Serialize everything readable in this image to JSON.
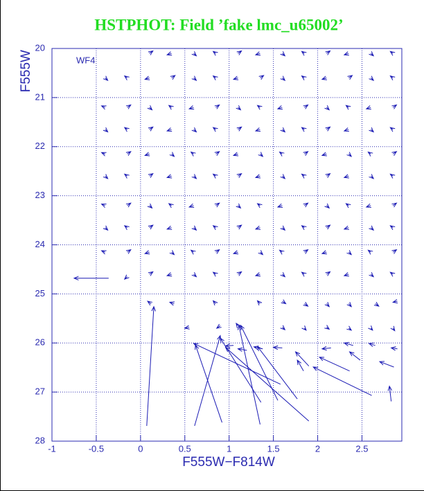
{
  "chart_data": {
    "type": "quiver",
    "title": "HSTPHOT: Field ’fake lmc_u65002’",
    "xlabel": "F555W−F814W",
    "ylabel": "F555W",
    "annotation": "WF4",
    "color": "#1a1ab4",
    "grid": true,
    "y_inverted": true,
    "xlim": [
      -1,
      2.95
    ],
    "ylim": [
      20,
      28
    ],
    "xticks": [
      -1,
      -0.5,
      0,
      0.5,
      1,
      1.5,
      2,
      2.5
    ],
    "yticks": [
      20,
      21,
      22,
      23,
      24,
      25,
      26,
      27,
      28
    ],
    "arrows": [
      [
        0.1,
        20.1,
        0.14,
        20.05
      ],
      [
        0.35,
        20.1,
        0.3,
        20.13
      ],
      [
        0.6,
        20.1,
        0.63,
        20.15
      ],
      [
        0.85,
        20.1,
        0.82,
        20.06
      ],
      [
        1.1,
        20.1,
        1.14,
        20.05
      ],
      [
        1.35,
        20.1,
        1.3,
        20.13
      ],
      [
        1.6,
        20.1,
        1.63,
        20.15
      ],
      [
        1.85,
        20.1,
        1.82,
        20.06
      ],
      [
        2.1,
        20.1,
        2.14,
        20.05
      ],
      [
        2.35,
        20.1,
        2.3,
        20.13
      ],
      [
        2.6,
        20.1,
        2.63,
        20.15
      ],
      [
        2.85,
        20.1,
        2.82,
        20.06
      ],
      [
        -0.4,
        20.6,
        -0.37,
        20.65
      ],
      [
        -0.15,
        20.6,
        -0.18,
        20.56
      ],
      [
        0.1,
        20.6,
        0.05,
        20.63
      ],
      [
        0.35,
        20.6,
        0.39,
        20.55
      ],
      [
        0.6,
        20.6,
        0.63,
        20.65
      ],
      [
        0.85,
        20.6,
        0.82,
        20.56
      ],
      [
        1.1,
        20.6,
        1.05,
        20.63
      ],
      [
        1.35,
        20.6,
        1.39,
        20.55
      ],
      [
        1.6,
        20.6,
        1.63,
        20.65
      ],
      [
        1.85,
        20.6,
        1.82,
        20.56
      ],
      [
        2.1,
        20.6,
        2.05,
        20.63
      ],
      [
        2.35,
        20.6,
        2.39,
        20.55
      ],
      [
        2.6,
        20.6,
        2.63,
        20.65
      ],
      [
        2.85,
        20.6,
        2.82,
        20.56
      ],
      [
        -0.4,
        21.2,
        -0.44,
        21.17
      ],
      [
        -0.15,
        21.2,
        -0.11,
        21.15
      ],
      [
        0.1,
        21.2,
        0.13,
        21.25
      ],
      [
        0.35,
        21.2,
        0.32,
        21.16
      ],
      [
        0.6,
        21.2,
        0.55,
        21.23
      ],
      [
        0.85,
        21.2,
        0.89,
        21.15
      ],
      [
        1.1,
        21.2,
        1.13,
        21.25
      ],
      [
        1.35,
        21.2,
        1.32,
        21.16
      ],
      [
        1.6,
        21.2,
        1.55,
        21.23
      ],
      [
        1.85,
        21.2,
        1.89,
        21.15
      ],
      [
        2.1,
        21.2,
        2.13,
        21.25
      ],
      [
        2.35,
        21.2,
        2.32,
        21.16
      ],
      [
        2.6,
        21.2,
        2.55,
        21.23
      ],
      [
        2.85,
        21.2,
        2.89,
        21.15
      ],
      [
        -0.4,
        21.65,
        -0.37,
        21.7
      ],
      [
        -0.15,
        21.65,
        -0.18,
        21.61
      ],
      [
        0.1,
        21.65,
        0.14,
        21.6
      ],
      [
        0.35,
        21.65,
        0.3,
        21.68
      ],
      [
        0.6,
        21.65,
        0.63,
        21.7
      ],
      [
        0.85,
        21.65,
        0.82,
        21.61
      ],
      [
        1.1,
        21.65,
        1.14,
        21.6
      ],
      [
        1.35,
        21.65,
        1.3,
        21.68
      ],
      [
        1.6,
        21.65,
        1.63,
        21.7
      ],
      [
        1.85,
        21.65,
        1.82,
        21.61
      ],
      [
        2.1,
        21.65,
        2.14,
        21.6
      ],
      [
        2.35,
        21.65,
        2.3,
        21.68
      ],
      [
        2.6,
        21.65,
        2.63,
        21.7
      ],
      [
        2.85,
        21.65,
        2.82,
        21.61
      ],
      [
        -0.4,
        22.15,
        -0.44,
        22.12
      ],
      [
        -0.15,
        22.15,
        -0.11,
        22.1
      ],
      [
        0.1,
        22.15,
        0.05,
        22.18
      ],
      [
        0.35,
        22.15,
        0.38,
        22.2
      ],
      [
        0.6,
        22.15,
        0.57,
        22.11
      ],
      [
        0.85,
        22.15,
        0.89,
        22.1
      ],
      [
        1.1,
        22.15,
        1.05,
        22.18
      ],
      [
        1.35,
        22.15,
        1.38,
        22.2
      ],
      [
        1.6,
        22.15,
        1.57,
        22.11
      ],
      [
        1.85,
        22.15,
        1.89,
        22.1
      ],
      [
        2.1,
        22.15,
        2.05,
        22.18
      ],
      [
        2.35,
        22.15,
        2.38,
        22.2
      ],
      [
        2.6,
        22.15,
        2.57,
        22.11
      ],
      [
        2.85,
        22.15,
        2.89,
        22.1
      ],
      [
        -0.4,
        22.6,
        -0.37,
        22.65
      ],
      [
        -0.15,
        22.6,
        -0.18,
        22.56
      ],
      [
        0.1,
        22.6,
        0.14,
        22.55
      ],
      [
        0.35,
        22.6,
        0.3,
        22.63
      ],
      [
        0.6,
        22.6,
        0.63,
        22.65
      ],
      [
        0.85,
        22.6,
        0.82,
        22.56
      ],
      [
        1.1,
        22.6,
        1.14,
        22.55
      ],
      [
        1.35,
        22.6,
        1.3,
        22.63
      ],
      [
        1.6,
        22.6,
        1.63,
        22.65
      ],
      [
        1.85,
        22.6,
        1.82,
        22.56
      ],
      [
        2.1,
        22.6,
        2.14,
        22.55
      ],
      [
        2.35,
        22.6,
        2.3,
        22.63
      ],
      [
        2.6,
        22.6,
        2.63,
        22.65
      ],
      [
        2.85,
        22.6,
        2.82,
        22.56
      ],
      [
        -0.4,
        23.2,
        -0.44,
        23.17
      ],
      [
        -0.15,
        23.2,
        -0.11,
        23.15
      ],
      [
        0.1,
        23.2,
        0.13,
        23.25
      ],
      [
        0.35,
        23.2,
        0.32,
        23.16
      ],
      [
        0.6,
        23.2,
        0.55,
        23.23
      ],
      [
        0.85,
        23.2,
        0.89,
        23.15
      ],
      [
        1.1,
        23.2,
        1.13,
        23.25
      ],
      [
        1.35,
        23.2,
        1.32,
        23.16
      ],
      [
        1.6,
        23.2,
        1.55,
        23.23
      ],
      [
        1.85,
        23.2,
        1.89,
        23.15
      ],
      [
        2.1,
        23.2,
        2.13,
        23.25
      ],
      [
        2.35,
        23.2,
        2.32,
        23.16
      ],
      [
        2.6,
        23.2,
        2.55,
        23.23
      ],
      [
        2.85,
        23.2,
        2.89,
        23.15
      ],
      [
        -0.4,
        23.65,
        -0.37,
        23.7
      ],
      [
        -0.15,
        23.65,
        -0.18,
        23.61
      ],
      [
        0.1,
        23.65,
        0.14,
        23.6
      ],
      [
        0.35,
        23.65,
        0.3,
        23.68
      ],
      [
        0.6,
        23.65,
        0.63,
        23.7
      ],
      [
        0.85,
        23.65,
        0.82,
        23.61
      ],
      [
        1.1,
        23.65,
        1.14,
        23.6
      ],
      [
        1.35,
        23.65,
        1.3,
        23.68
      ],
      [
        1.6,
        23.65,
        1.63,
        23.7
      ],
      [
        1.85,
        23.65,
        1.82,
        23.61
      ],
      [
        2.1,
        23.65,
        2.14,
        23.6
      ],
      [
        2.35,
        23.65,
        2.3,
        23.68
      ],
      [
        2.6,
        23.65,
        2.63,
        23.7
      ],
      [
        2.85,
        23.65,
        2.82,
        23.61
      ],
      [
        -0.4,
        24.15,
        -0.44,
        24.12
      ],
      [
        -0.15,
        24.15,
        -0.11,
        24.1
      ],
      [
        0.1,
        24.15,
        0.05,
        24.18
      ],
      [
        0.35,
        24.15,
        0.38,
        24.2
      ],
      [
        0.6,
        24.15,
        0.57,
        24.11
      ],
      [
        0.85,
        24.15,
        0.89,
        24.1
      ],
      [
        1.1,
        24.15,
        1.05,
        24.18
      ],
      [
        1.35,
        24.15,
        1.38,
        24.2
      ],
      [
        1.6,
        24.15,
        1.57,
        24.11
      ],
      [
        1.85,
        24.15,
        1.89,
        24.1
      ],
      [
        2.1,
        24.15,
        2.05,
        24.18
      ],
      [
        2.35,
        24.15,
        2.38,
        24.2
      ],
      [
        2.6,
        24.15,
        2.57,
        24.11
      ],
      [
        2.85,
        24.15,
        2.89,
        24.1
      ],
      [
        -0.15,
        24.65,
        -0.18,
        24.7
      ],
      [
        0.1,
        24.6,
        0.14,
        24.55
      ],
      [
        0.35,
        24.6,
        0.3,
        24.63
      ],
      [
        0.6,
        24.6,
        0.63,
        24.65
      ],
      [
        0.85,
        24.6,
        0.82,
        24.56
      ],
      [
        1.1,
        24.6,
        1.14,
        24.55
      ],
      [
        1.35,
        24.6,
        1.3,
        24.63
      ],
      [
        1.6,
        24.6,
        1.63,
        24.65
      ],
      [
        1.85,
        24.6,
        1.82,
        24.56
      ],
      [
        2.1,
        24.6,
        2.14,
        24.55
      ],
      [
        2.35,
        24.6,
        2.3,
        24.63
      ],
      [
        2.6,
        24.6,
        2.63,
        24.65
      ],
      [
        2.85,
        24.6,
        2.82,
        24.56
      ],
      [
        0.12,
        25.2,
        0.08,
        25.15
      ],
      [
        0.38,
        25.2,
        0.33,
        25.17
      ],
      [
        0.85,
        25.2,
        0.82,
        25.14
      ],
      [
        1.35,
        25.2,
        1.32,
        25.14
      ],
      [
        1.6,
        25.15,
        1.64,
        25.2
      ],
      [
        1.85,
        25.2,
        1.89,
        25.25
      ],
      [
        2.1,
        25.2,
        2.13,
        25.26
      ],
      [
        2.35,
        25.2,
        2.38,
        25.26
      ],
      [
        2.65,
        25.2,
        2.69,
        25.25
      ],
      [
        2.9,
        25.15,
        2.85,
        25.17
      ],
      [
        0.55,
        25.68,
        0.5,
        25.7
      ],
      [
        0.9,
        25.65,
        0.86,
        25.7
      ],
      [
        1.1,
        25.65,
        1.08,
        25.6
      ],
      [
        1.6,
        25.68,
        1.63,
        25.73
      ],
      [
        1.85,
        25.7,
        1.87,
        25.74
      ],
      [
        2.1,
        25.68,
        2.13,
        25.72
      ],
      [
        2.35,
        25.7,
        2.38,
        25.74
      ],
      [
        2.6,
        25.7,
        2.62,
        25.74
      ],
      [
        2.85,
        25.7,
        2.87,
        25.75
      ],
      [
        -0.36,
        24.68,
        -0.75,
        24.68
      ],
      [
        0.07,
        27.69,
        0.15,
        25.26
      ],
      [
        0.61,
        27.69,
        0.9,
        25.85
      ],
      [
        0.92,
        27.62,
        0.62,
        26.04
      ],
      [
        1.35,
        27.66,
        1.11,
        25.64
      ],
      [
        1.36,
        27.21,
        0.9,
        25.9
      ],
      [
        1.55,
        27.17,
        1.13,
        25.64
      ],
      [
        1.77,
        27.14,
        1.32,
        26.07
      ],
      [
        1.9,
        27.59,
        0.96,
        26.09
      ],
      [
        1.58,
        26.84,
        0.6,
        26.01
      ],
      [
        2.61,
        27.07,
        1.95,
        26.49
      ],
      [
        2.36,
        26.57,
        2.02,
        26.29
      ],
      [
        2.83,
        27.19,
        2.81,
        26.88
      ],
      [
        2.86,
        26.49,
        2.7,
        26.38
      ],
      [
        2.48,
        26.35,
        2.36,
        26.18
      ],
      [
        1.9,
        26.47,
        1.75,
        26.18
      ],
      [
        1.84,
        26.57,
        1.77,
        26.35
      ],
      [
        1.6,
        26.1,
        1.5,
        26.09
      ],
      [
        1.38,
        26.12,
        1.28,
        26.08
      ],
      [
        2.15,
        26.1,
        2.05,
        26.12
      ],
      [
        2.4,
        26.05,
        2.3,
        26.0
      ],
      [
        2.65,
        26.05,
        2.58,
        26.01
      ],
      [
        2.9,
        26.12,
        2.83,
        26.1
      ],
      [
        1.2,
        26.15,
        1.1,
        26.12
      ],
      [
        1.05,
        26.05,
        0.96,
        26.06
      ]
    ]
  }
}
